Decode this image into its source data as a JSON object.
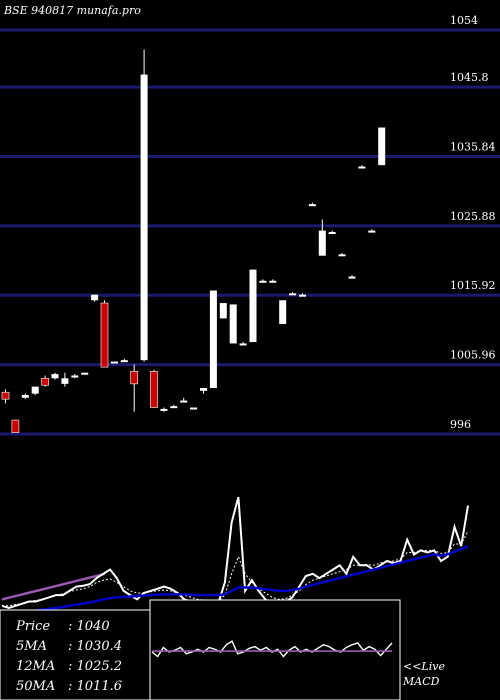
{
  "header": {
    "title": "BSE 940817 munafa.pro"
  },
  "colors": {
    "background": "#000000",
    "grid": "#1a1a6e",
    "up": "#ffffff",
    "down": "#cc0000",
    "ma_short": "#ffffff",
    "ma_long": "#0000cc",
    "ma_violet": "#9b59b6",
    "text": "#ffffff"
  },
  "chart_data": [
    {
      "type": "candlestick",
      "title": "BSE 940817 munafa.pro",
      "ylim": [
        996,
        1054
      ],
      "y_ticks": [
        1054,
        1045.8,
        1035.84,
        1025.88,
        1015.92,
        1005.96,
        996
      ],
      "y_tick_labels": [
        "1054",
        "1045.8",
        "1035.84",
        "1025.88",
        "1015.92",
        "1005.96",
        "996"
      ],
      "grid": true,
      "candles": [
        {
          "o": 1002.0,
          "h": 1002.4,
          "l": 1000.4,
          "c": 1001.0,
          "dir": "down"
        },
        {
          "o": 998.0,
          "h": 998.0,
          "l": 996.2,
          "c": 996.2,
          "dir": "down"
        },
        {
          "o": 1001.2,
          "h": 1001.8,
          "l": 1001.0,
          "c": 1001.6,
          "dir": "up"
        },
        {
          "o": 1001.8,
          "h": 1002.8,
          "l": 1001.6,
          "c": 1002.8,
          "dir": "up"
        },
        {
          "o": 1004.0,
          "h": 1004.4,
          "l": 1002.8,
          "c": 1003.0,
          "dir": "down"
        },
        {
          "o": 1004.0,
          "h": 1004.8,
          "l": 1003.8,
          "c": 1004.6,
          "dir": "up"
        },
        {
          "o": 1003.2,
          "h": 1004.8,
          "l": 1002.8,
          "c": 1004.0,
          "dir": "up"
        },
        {
          "o": 1004.2,
          "h": 1004.6,
          "l": 1004.0,
          "c": 1004.4,
          "dir": "up"
        },
        {
          "o": 1004.8,
          "h": 1004.8,
          "l": 1004.6,
          "c": 1004.8,
          "dir": "up"
        },
        {
          "o": 1015.2,
          "h": 1016.0,
          "l": 1015.0,
          "c": 1016.0,
          "dir": "up"
        },
        {
          "o": 1014.8,
          "h": 1015.2,
          "l": 1005.6,
          "c": 1005.6,
          "dir": "down"
        },
        {
          "o": 1006.4,
          "h": 1006.4,
          "l": 1006.2,
          "c": 1006.4,
          "dir": "up"
        },
        {
          "o": 1006.6,
          "h": 1006.8,
          "l": 1006.4,
          "c": 1006.6,
          "dir": "up"
        },
        {
          "o": 1005.0,
          "h": 1006.0,
          "l": 999.2,
          "c": 1003.2,
          "dir": "down"
        },
        {
          "o": 1006.6,
          "h": 1051.2,
          "l": 1006.4,
          "c": 1047.6,
          "dir": "up"
        },
        {
          "o": 1005.0,
          "h": 1005.2,
          "l": 999.8,
          "c": 999.8,
          "dir": "down"
        },
        {
          "o": 999.6,
          "h": 999.8,
          "l": 999.2,
          "c": 999.6,
          "dir": "up"
        },
        {
          "o": 1000.0,
          "h": 1000.2,
          "l": 999.8,
          "c": 1000.0,
          "dir": "up"
        },
        {
          "o": 1000.8,
          "h": 1001.2,
          "l": 1000.6,
          "c": 1000.8,
          "dir": "up"
        },
        {
          "o": 999.8,
          "h": 999.8,
          "l": 999.6,
          "c": 999.8,
          "dir": "up"
        },
        {
          "o": 1002.2,
          "h": 1002.4,
          "l": 1001.8,
          "c": 1002.6,
          "dir": "up"
        },
        {
          "o": 1002.6,
          "h": 1016.6,
          "l": 1002.6,
          "c": 1016.6,
          "dir": "up"
        },
        {
          "o": 1012.6,
          "h": 1014.8,
          "l": 1012.6,
          "c": 1014.8,
          "dir": "up"
        },
        {
          "o": 1009.0,
          "h": 1014.6,
          "l": 1009.0,
          "c": 1014.6,
          "dir": "up"
        },
        {
          "o": 1009.0,
          "h": 1009.2,
          "l": 1008.8,
          "c": 1009.0,
          "dir": "up"
        },
        {
          "o": 1009.2,
          "h": 1019.6,
          "l": 1009.2,
          "c": 1019.6,
          "dir": "up"
        },
        {
          "o": 1018.0,
          "h": 1018.2,
          "l": 1017.8,
          "c": 1018.0,
          "dir": "up"
        },
        {
          "o": 1018.0,
          "h": 1018.2,
          "l": 1017.8,
          "c": 1018.0,
          "dir": "up"
        },
        {
          "o": 1011.8,
          "h": 1015.2,
          "l": 1011.8,
          "c": 1015.2,
          "dir": "up"
        },
        {
          "o": 1016.2,
          "h": 1016.4,
          "l": 1016.0,
          "c": 1016.2,
          "dir": "up"
        },
        {
          "o": 1016.0,
          "h": 1016.2,
          "l": 1015.8,
          "c": 1016.0,
          "dir": "up"
        },
        {
          "o": 1029.0,
          "h": 1029.2,
          "l": 1028.8,
          "c": 1029.0,
          "dir": "up"
        },
        {
          "o": 1021.6,
          "h": 1026.8,
          "l": 1021.6,
          "c": 1025.2,
          "dir": "up"
        },
        {
          "o": 1025.0,
          "h": 1025.2,
          "l": 1024.8,
          "c": 1025.0,
          "dir": "up"
        },
        {
          "o": 1021.8,
          "h": 1022.0,
          "l": 1021.6,
          "c": 1021.8,
          "dir": "up"
        },
        {
          "o": 1018.6,
          "h": 1018.8,
          "l": 1018.4,
          "c": 1018.6,
          "dir": "up"
        },
        {
          "o": 1034.4,
          "h": 1034.6,
          "l": 1034.2,
          "c": 1034.4,
          "dir": "up"
        },
        {
          "o": 1025.2,
          "h": 1025.4,
          "l": 1025.0,
          "c": 1025.2,
          "dir": "up"
        },
        {
          "o": 1034.6,
          "h": 1040.0,
          "l": 1034.6,
          "c": 1040.0,
          "dir": "up"
        }
      ]
    },
    {
      "type": "line",
      "title": "",
      "series": [
        {
          "name": "",
          "color": "#9b59b6",
          "values": [
            1002.0,
            1002.4,
            1002.8,
            1003.2,
            1003.6,
            1004.0,
            1004.4,
            1004.8,
            1005.2,
            1005.6,
            1006.0,
            1006.4,
            1006.8,
            1007.2,
            1007.6,
            1008.0
          ]
        },
        {
          "name": "",
          "color": "#ffffff",
          "values": [
            1000.5,
            1000.0,
            1000.5,
            1001.0,
            1001.5,
            1001.5,
            1002.0,
            1002.5,
            1003.0,
            1003.0,
            1004.0,
            1005.0,
            1005.2,
            1005.6,
            1007.0,
            1008.0,
            1009.0,
            1007.0,
            1004.0,
            1003.0,
            1002.0,
            1003.5,
            1004.0,
            1004.5,
            1005.0,
            1004.5,
            1003.5,
            1002.0,
            1001.5,
            1001.5,
            1001.0,
            1001.5,
            1001.0,
            1006.0,
            1020.0,
            1026.0,
            1004.0,
            1006.5,
            1004.0,
            1002.0,
            1001.0,
            1000.0,
            1001.5,
            1002.5,
            1005.0,
            1007.5,
            1008.0,
            1007.0,
            1008.0,
            1009.0,
            1010.0,
            1008.0,
            1012.0,
            1010.0,
            1010.0,
            1009.0,
            1010.0,
            1011.0,
            1010.5,
            1011.0,
            1016.0,
            1012.5,
            1013.5,
            1013.0,
            1013.5,
            1011.0,
            1012.0,
            1019.0,
            1014.5,
            1024.0
          ]
        },
        {
          "name": "",
          "color": "#ffffff",
          "values": [
            1000.5,
            1000.5,
            1000.8,
            1001.0,
            1001.5,
            1001.8,
            1002.0,
            1002.5,
            1003.0,
            1003.3,
            1003.8,
            1004.2,
            1004.5,
            1005.0,
            1006.0,
            1006.5,
            1006.8,
            1006.0,
            1005.0,
            1004.0,
            1003.5,
            1003.5,
            1003.8,
            1004.0,
            1004.2,
            1004.0,
            1003.5,
            1003.0,
            1002.5,
            1002.0,
            1001.8,
            1001.5,
            1001.5,
            1003.0,
            1008.0,
            1012.0,
            1008.0,
            1006.0,
            1004.5,
            1003.5,
            1002.5,
            1002.0,
            1002.2,
            1003.0,
            1004.0,
            1005.5,
            1006.5,
            1007.0,
            1007.5,
            1008.0,
            1008.5,
            1009.0,
            1010.0,
            1010.0,
            1010.2,
            1010.0,
            1010.5,
            1011.0,
            1011.0,
            1011.5,
            1013.0,
            1013.0,
            1013.5,
            1013.5,
            1013.5,
            1012.8,
            1013.0,
            1015.0,
            1015.0,
            1018.0
          ]
        },
        {
          "name": "",
          "color": "#0000cc",
          "values": [
            998.5,
            998.6,
            998.8,
            999.0,
            999.2,
            999.4,
            999.6,
            999.8,
            1000.0,
            1000.2,
            1000.5,
            1000.8,
            1001.0,
            1001.3,
            1001.6,
            1002.0,
            1002.3,
            1002.5,
            1002.6,
            1002.7,
            1002.8,
            1002.9,
            1003.0,
            1003.1,
            1003.2,
            1003.2,
            1003.2,
            1003.2,
            1003.1,
            1003.0,
            1003.0,
            1003.0,
            1003.0,
            1003.2,
            1004.0,
            1004.8,
            1004.8,
            1004.8,
            1004.6,
            1004.4,
            1004.2,
            1004.0,
            1004.0,
            1004.2,
            1004.5,
            1005.0,
            1005.4,
            1005.8,
            1006.2,
            1006.6,
            1007.0,
            1007.4,
            1007.8,
            1008.2,
            1008.6,
            1009.0,
            1009.4,
            1009.8,
            1010.2,
            1010.6,
            1011.0,
            1011.4,
            1011.8,
            1012.2,
            1012.6,
            1012.2,
            1012.6,
            1013.2,
            1013.8,
            1014.4
          ]
        }
      ]
    },
    {
      "type": "line",
      "title": "",
      "ylabel": "",
      "series": [
        {
          "name": "",
          "color": "#ffffff",
          "values": [
            0.0,
            -0.5,
            0.5,
            0.0,
            0.2,
            0.5,
            -0.2,
            0.0,
            0.3,
            0.0,
            0.5,
            0.3,
            0.0,
            0.8,
            1.2,
            -0.2,
            0.0,
            0.4,
            0.6,
            0.2,
            0.5,
            0.0,
            0.3,
            -0.5,
            0.2,
            0.6,
            0.0,
            0.3,
            0.0,
            0.4,
            0.8,
            0.6,
            0.2,
            0.0,
            0.5,
            0.8,
            1.0,
            0.2,
            0.6,
            0.3,
            -0.4,
            0.3,
            1.0
          ]
        },
        {
          "name": "",
          "color": "#9b59b6",
          "values": [
            0.1,
            0.1,
            0.1,
            0.1,
            0.1,
            0.1,
            0.1,
            0.1,
            0.1,
            0.1,
            0.1,
            0.1,
            0.1,
            0.1,
            0.1,
            0.1,
            0.1,
            0.1,
            0.1,
            0.1,
            0.1,
            0.1,
            0.1,
            0.1,
            0.1,
            0.1,
            0.1,
            0.1,
            0.1,
            0.1,
            0.1,
            0.1,
            0.1,
            0.1,
            0.1,
            0.1,
            0.1,
            0.1,
            0.1,
            0.1,
            0.1,
            0.1,
            0.1
          ]
        }
      ]
    }
  ],
  "info_box": {
    "price_label": "Price",
    "price_value": ": 1040",
    "ma5_label": "5MA",
    "ma5_value": ": 1030.4",
    "ma12_label": "12MA",
    "ma12_value": ": 1025.2",
    "ma50_label": "50MA",
    "ma50_value": ": 1011.6"
  },
  "macd_label": {
    "live": "<<Live",
    "name": "MACD"
  }
}
